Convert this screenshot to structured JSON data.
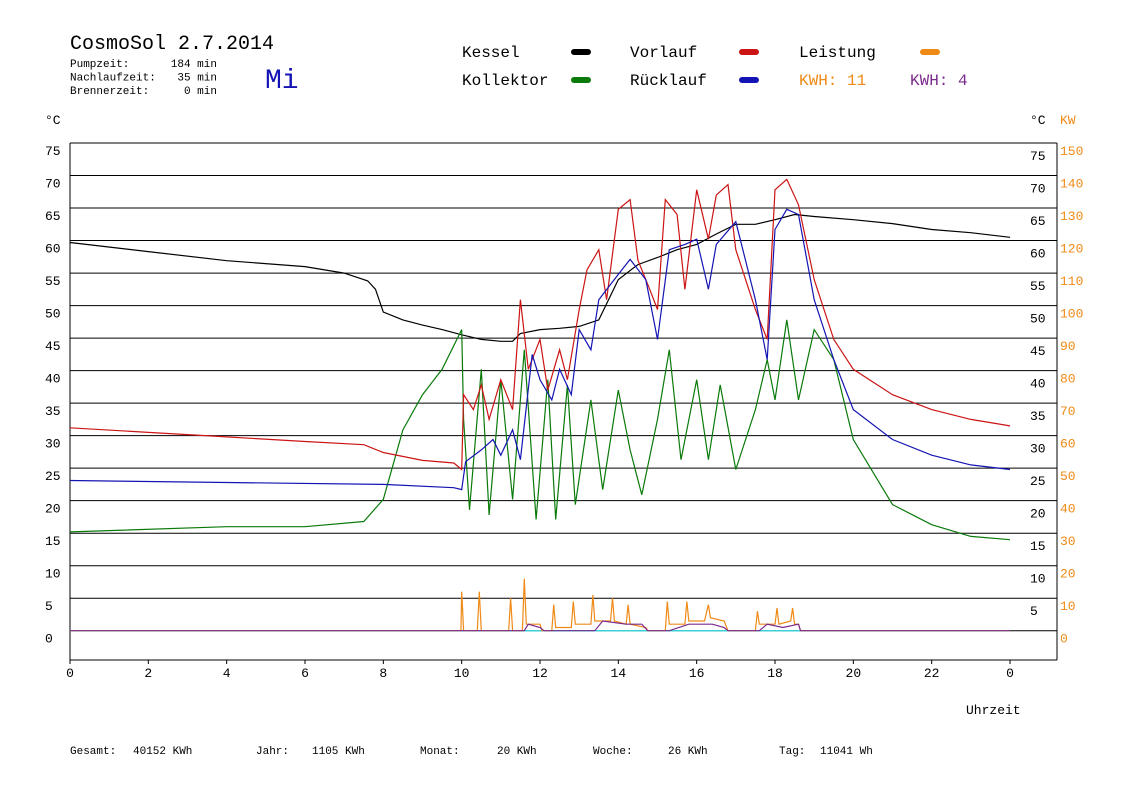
{
  "chart_data": {
    "type": "line",
    "title": "CosmoSol 2.7.2014",
    "weekday": "Mi",
    "info": [
      {
        "label": "Pumpzeit:",
        "value": "184 min"
      },
      {
        "label": "Nachlaufzeit:",
        "value": "35 min"
      },
      {
        "label": "Brennerzeit:",
        "value": "0 min"
      }
    ],
    "y_unit": "°C",
    "y_unit_right": "°C",
    "y2_unit": "KW",
    "x_label": "Uhrzeit",
    "kwh_labels": [
      {
        "text": "KWH: 11",
        "color": "#ef8a17"
      },
      {
        "text": "KWH: 4",
        "color": "#7b2a8c"
      }
    ],
    "totals": [
      {
        "label": "Gesamt:",
        "value": "40152 KWh"
      },
      {
        "label": "Jahr:",
        "value": "1105 KWh"
      },
      {
        "label": "Monat:",
        "value": "20 KWh"
      },
      {
        "label": "Woche:",
        "value": "26 KWh"
      },
      {
        "label": "Tag:",
        "value": "11041 Wh"
      }
    ],
    "xlim": [
      0,
      25.2
    ],
    "xticks": [
      0,
      2,
      4,
      6,
      8,
      10,
      12,
      14,
      16,
      18,
      20,
      22,
      {
        "value": 24,
        "label": "0"
      }
    ],
    "ylim": [
      -4.5,
      75
    ],
    "yticks": [
      0,
      5,
      10,
      15,
      20,
      25,
      30,
      35,
      40,
      45,
      50,
      55,
      60,
      65,
      70,
      75
    ],
    "yticks_right": [
      5,
      10,
      15,
      20,
      25,
      30,
      35,
      40,
      45,
      50,
      55,
      60,
      65,
      70,
      75
    ],
    "y2lim": [
      -9,
      150
    ],
    "y2ticks": [
      0,
      10,
      20,
      30,
      40,
      50,
      60,
      70,
      80,
      90,
      100,
      110,
      120,
      130,
      140,
      150
    ],
    "y2color": "#ef8a17",
    "grid": true,
    "series": [
      {
        "name": "Kessel",
        "color": "#000000",
        "x": [
          0,
          2,
          4,
          6,
          7,
          7.6,
          7.8,
          8,
          8.5,
          9,
          9.5,
          10,
          10.5,
          11,
          11.3,
          11.5,
          12,
          12.5,
          13,
          13.5,
          14,
          14.5,
          15,
          15.5,
          16,
          16.5,
          17,
          17.5,
          18,
          18.5,
          19,
          20,
          21,
          22,
          23,
          24
        ],
        "values": [
          59.7,
          58.3,
          56.9,
          56,
          55,
          53.8,
          52.5,
          49,
          47.8,
          47,
          46.3,
          45.5,
          44.8,
          44.5,
          44.5,
          45.7,
          46.3,
          46.5,
          46.8,
          47.8,
          54,
          56.3,
          57.4,
          58.6,
          59.4,
          61,
          62.5,
          62.5,
          63.2,
          64,
          63.7,
          63.2,
          62.6,
          61.7,
          61.2,
          60.5
        ]
      },
      {
        "name": "Kollektor",
        "color": "#0a7a0a",
        "x": [
          0,
          4,
          6,
          7.5,
          8,
          8.5,
          9,
          9.5,
          10,
          10.05,
          10.2,
          10.5,
          10.7,
          11,
          11.3,
          11.6,
          11.9,
          12.2,
          12.4,
          12.7,
          12.9,
          13.3,
          13.6,
          14,
          14.3,
          14.6,
          15,
          15.3,
          15.6,
          16,
          16.3,
          16.6,
          17,
          17.5,
          17.8,
          18,
          18.3,
          18.6,
          19,
          19.5,
          20,
          21,
          22,
          23,
          24
        ],
        "values": [
          15.2,
          16,
          16,
          16.8,
          20.2,
          30.9,
          36.3,
          40.2,
          46.3,
          32.5,
          18.6,
          40.2,
          17.8,
          38.6,
          20.2,
          43.2,
          17.1,
          38.6,
          17.1,
          37.8,
          19.4,
          35.5,
          21.7,
          37,
          27.8,
          20.9,
          32.5,
          43.2,
          26.3,
          38.6,
          26.3,
          37.8,
          24.8,
          34,
          41.7,
          35.5,
          47.8,
          35.5,
          46.3,
          41.7,
          29.4,
          19.4,
          16.3,
          14.5,
          14
        ]
      },
      {
        "name": "Vorlauf",
        "color": "#cc1414",
        "x": [
          0,
          2,
          4,
          6,
          7.5,
          8,
          9,
          9.8,
          10,
          10.05,
          10.3,
          10.5,
          10.7,
          11,
          11.3,
          11.5,
          11.7,
          12,
          12.2,
          12.5,
          12.7,
          13,
          13.2,
          13.5,
          13.7,
          14,
          14.3,
          14.5,
          14.8,
          15,
          15.2,
          15.5,
          15.7,
          16,
          16.3,
          16.5,
          16.8,
          17,
          17.5,
          17.8,
          18,
          18.3,
          18.6,
          19,
          19.5,
          20,
          21,
          22,
          23,
          24
        ],
        "values": [
          31.2,
          30.5,
          29.8,
          29.1,
          28.6,
          27.4,
          26.2,
          25.8,
          24.8,
          36.3,
          34,
          37.8,
          32.5,
          38.6,
          34,
          50.9,
          40.2,
          44.8,
          37,
          43.2,
          38.6,
          49.4,
          55.5,
          58.6,
          50.9,
          64.8,
          66.3,
          57,
          52.5,
          49.4,
          66.3,
          64,
          52.5,
          67.8,
          60.2,
          67,
          68.6,
          58.6,
          49.4,
          44.8,
          67.8,
          69.4,
          65.5,
          54,
          44.8,
          40.2,
          36.3,
          34,
          32.5,
          31.5
        ]
      },
      {
        "name": "Rücklauf",
        "color": "#1414b4",
        "x": [
          0,
          4,
          8,
          9.8,
          10,
          10.1,
          10.5,
          10.8,
          11,
          11.3,
          11.5,
          11.8,
          12,
          12.3,
          12.5,
          12.8,
          13,
          13.3,
          13.5,
          14,
          14.3,
          14.7,
          15,
          15.3,
          15.7,
          16,
          16.3,
          16.5,
          17,
          17.5,
          17.8,
          18,
          18.3,
          18.6,
          19,
          19.5,
          20,
          21,
          22,
          23,
          24
        ],
        "values": [
          23.1,
          22.8,
          22.5,
          22,
          21.7,
          26,
          27.8,
          29.4,
          27,
          30.9,
          26.3,
          42.5,
          38.6,
          35.5,
          40.2,
          36.3,
          46.3,
          43.2,
          50.9,
          54.8,
          57.1,
          54,
          44.8,
          58.6,
          59.4,
          60.2,
          52.5,
          59.4,
          62.9,
          50.9,
          41.7,
          61.7,
          64.8,
          64,
          50.9,
          41.7,
          34,
          29.4,
          27,
          25.5,
          24.8
        ]
      },
      {
        "name": "Leistung",
        "color": "#ef8a17",
        "axis": "y2",
        "x": [
          0,
          9.98,
          10,
          10.05,
          10.4,
          10.45,
          10.5,
          11.2,
          11.25,
          11.3,
          11.55,
          11.6,
          11.65,
          12,
          12.05,
          12.3,
          12.35,
          12.4,
          12.8,
          12.85,
          12.9,
          13.3,
          13.35,
          13.4,
          13.8,
          13.85,
          13.9,
          14.2,
          14.25,
          14.3,
          14.7,
          14.75,
          15.2,
          15.25,
          15.3,
          15.7,
          15.75,
          15.8,
          16.2,
          16.3,
          16.35,
          16.7,
          16.8,
          17.5,
          17.55,
          17.6,
          18,
          18.05,
          18.1,
          18.4,
          18.45,
          18.5,
          18.6,
          18.65,
          24
        ],
        "values": [
          0,
          0,
          12,
          0,
          0,
          12,
          0,
          0,
          10,
          0,
          0,
          16,
          2,
          2,
          0,
          0,
          8,
          1,
          1,
          9,
          2,
          2,
          11,
          3,
          3,
          10,
          3,
          2,
          8,
          2,
          1,
          0,
          0,
          9,
          2,
          2,
          9,
          3,
          3,
          8,
          4,
          3,
          0,
          0,
          6,
          2,
          2,
          7,
          2,
          3,
          7,
          2,
          2,
          0,
          0
        ]
      },
      {
        "color": "#7b2a8c",
        "axis": "y2",
        "x": [
          0,
          11.6,
          11.7,
          12,
          12.1,
          13.4,
          13.6,
          14.2,
          14.6,
          14.75,
          15.3,
          15.8,
          16.4,
          16.7,
          16.8,
          17.6,
          17.8,
          18.2,
          18.6,
          18.65,
          24
        ],
        "values": [
          0,
          0,
          2,
          1,
          0,
          0,
          3,
          2,
          2,
          0,
          0,
          2,
          2,
          1,
          0,
          0,
          2,
          1,
          2,
          0,
          0
        ]
      }
    ]
  }
}
